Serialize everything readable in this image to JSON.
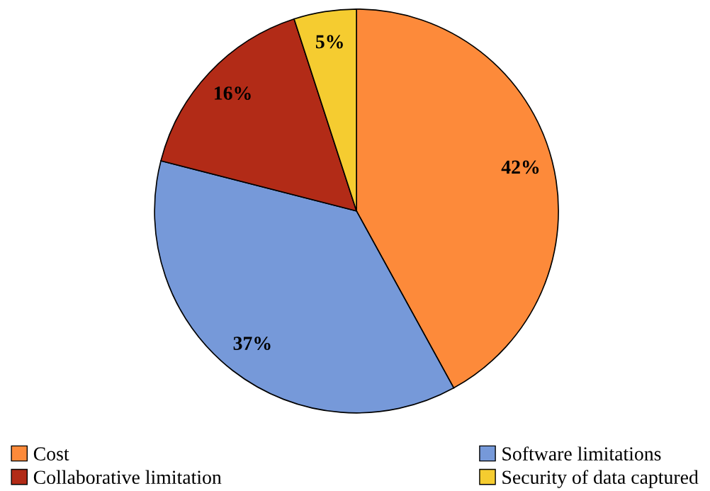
{
  "chart_data": {
    "type": "pie",
    "categories": [
      "Cost",
      "Software limitations",
      "Collaborative limitation",
      "Security of data captured"
    ],
    "values": [
      42,
      37,
      16,
      5
    ],
    "colors": [
      "#fd8a3a",
      "#7699d9",
      "#b22b17",
      "#f5cc30"
    ],
    "value_labels": [
      "42%",
      "37%",
      "16%",
      "5%"
    ],
    "legend": "bottom"
  }
}
